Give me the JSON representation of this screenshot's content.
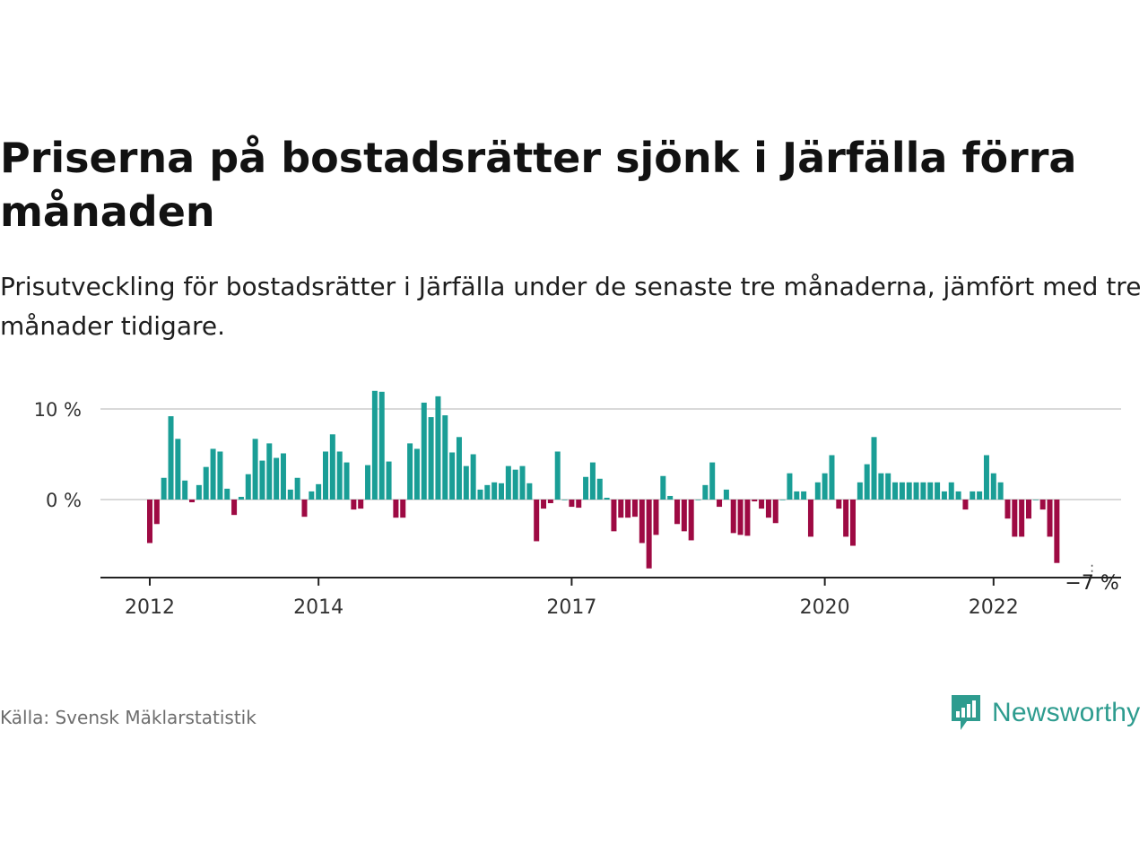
{
  "header": {
    "title": "Priserna på bostadsrätter sjönk i Järfälla förra månaden",
    "subtitle": "Prisutveckling för bostadsrätter i Järfälla under de senaste tre månaderna, jämfört med tre månader tidigare."
  },
  "footer": {
    "source": "Källa: Svensk Mäklarstatistik",
    "brand": "Newsworthy"
  },
  "colors": {
    "positive": "#1a9e96",
    "negative": "#9e0a43",
    "grid": "#d9d9d9",
    "axis": "#222222",
    "brand": "#2e9c8f"
  },
  "chart_data": {
    "type": "bar",
    "title": "Priserna på bostadsrätter sjönk i Järfälla förra månaden",
    "subtitle": "Prisutveckling för bostadsrätter i Järfälla under de senaste tre månaderna, jämfört med tre månader tidigare.",
    "xlabel": "",
    "ylabel": "",
    "y_unit": "%",
    "ylim": [
      -8.6,
      12.5
    ],
    "y_ticks": [
      {
        "value": 0,
        "label": "0 %"
      },
      {
        "value": 10,
        "label": "10 %"
      }
    ],
    "grid": true,
    "legend": "none",
    "x_start": "2012-01",
    "x_end": "2023-03",
    "x_ticks": [
      {
        "date": "2012-01",
        "label": "2012"
      },
      {
        "date": "2014-01",
        "label": "2014"
      },
      {
        "date": "2017-01",
        "label": "2017"
      },
      {
        "date": "2020-01",
        "label": "2020"
      },
      {
        "date": "2022-01",
        "label": "2022"
      }
    ],
    "annotation": {
      "date": "2023-03",
      "value": -7,
      "label": "−7 %"
    },
    "values": [
      -4.8,
      -2.7,
      2.4,
      9.2,
      6.7,
      2.1,
      -0.3,
      1.6,
      3.6,
      5.6,
      5.3,
      1.2,
      -1.7,
      0.3,
      2.8,
      6.7,
      4.3,
      6.2,
      4.6,
      5.1,
      1.1,
      2.4,
      -1.9,
      0.9,
      1.7,
      5.3,
      7.2,
      5.3,
      4.1,
      -1.1,
      -1.0,
      3.8,
      12.0,
      11.9,
      4.2,
      -2.0,
      -2.0,
      6.2,
      5.6,
      10.7,
      9.1,
      11.4,
      9.3,
      5.2,
      6.9,
      3.7,
      5.0,
      1.1,
      1.6,
      1.9,
      1.8,
      3.7,
      3.3,
      3.7,
      1.8,
      -4.6,
      -1.0,
      -0.4,
      5.3,
      0.0,
      -0.8,
      -0.9,
      2.5,
      4.1,
      2.3,
      0.2,
      -3.5,
      -2.0,
      -2.0,
      -1.9,
      -4.8,
      -7.6,
      -3.9,
      2.6,
      0.4,
      -2.7,
      -3.5,
      -4.5,
      0.0,
      1.6,
      4.1,
      -0.8,
      1.1,
      -3.7,
      -3.9,
      -4.0,
      -0.2,
      -1.0,
      -2.0,
      -2.6,
      0.0,
      2.9,
      0.9,
      0.9,
      -4.1,
      1.9,
      2.9,
      4.9,
      -1.0,
      -4.1,
      -5.1,
      1.9,
      3.9,
      6.9,
      2.9,
      2.9,
      1.9,
      1.9,
      1.9,
      1.9,
      1.9,
      1.9,
      1.9,
      0.9,
      1.9,
      0.9,
      -1.1,
      0.9,
      0.9,
      4.9,
      2.9,
      1.9,
      -2.1,
      -4.1,
      -4.1,
      -2.1,
      0.0,
      -1.1,
      -4.1,
      -7.0
    ]
  }
}
